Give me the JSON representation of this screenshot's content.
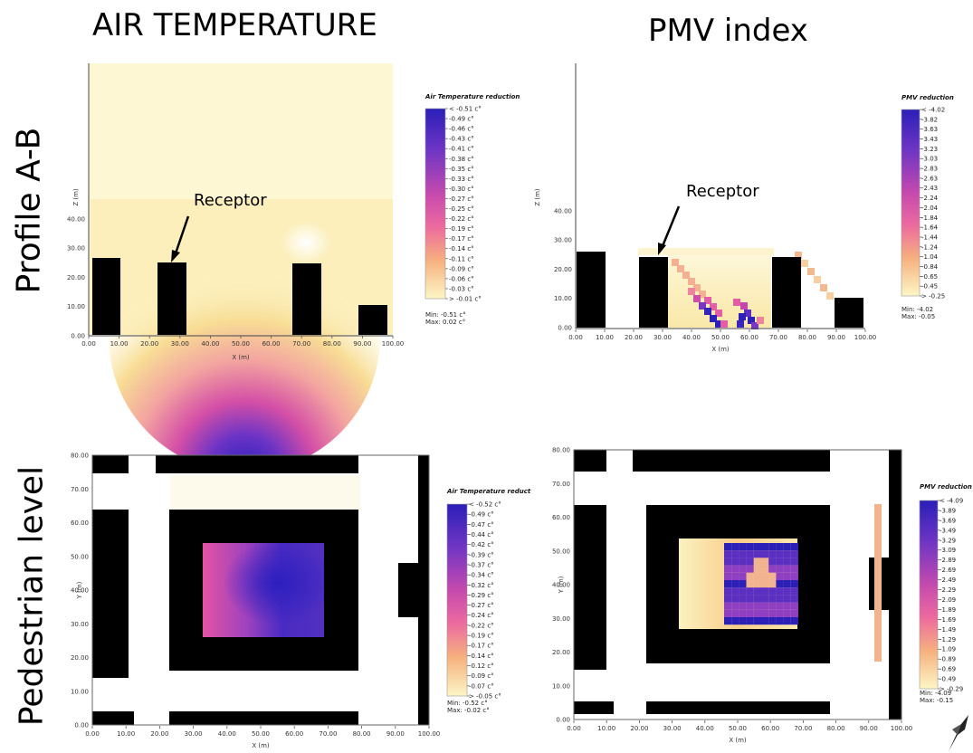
{
  "titles": {
    "col_left": "AIR TEMPERATURE",
    "col_right": "PMV index",
    "row_top": "Profile A-B",
    "row_bottom": "Pedestrian level"
  },
  "colors": {
    "low": "#fdf8d6",
    "mid1": "#f7e08a",
    "mid2": "#f3a9a6",
    "mid3": "#e25ea7",
    "mid4": "#8e3fc2",
    "high": "#2a1fb8",
    "building": "#000000"
  },
  "chart_data": [
    {
      "type": "heatmap",
      "name": "air-temp-profile",
      "xlabel": "X (m)",
      "ylabel": "Z (m)",
      "xlim": [
        0,
        100
      ],
      "ylim": [
        0,
        80
      ],
      "x_ticks": [
        "0.00",
        "10.00",
        "20.00",
        "30.00",
        "40.00",
        "50.00",
        "60.00",
        "70.00",
        "80.00",
        "90.00",
        "100.00"
      ],
      "y_ticks": [
        "0.00",
        "10.00",
        "20.00",
        "30.00",
        "40.00"
      ],
      "annotation": "Receptor",
      "legend_title": "Air Temperature reduction",
      "legend_labels": [
        "< -0.51 c°",
        "-0.49 c°",
        "-0.46 c°",
        "-0.43 c°",
        "-0.41 c°",
        "-0.38 c°",
        "-0.35 c°",
        "-0.33 c°",
        "-0.30 c°",
        "-0.27 c°",
        "-0.25 c°",
        "-0.22 c°",
        "-0.19 c°",
        "-0.17 c°",
        "-0.14 c°",
        "-0.11 c°",
        "-0.09 c°",
        "-0.06 c°",
        "-0.03 c°",
        "> -0.01 c°"
      ],
      "min_label": "Min: -0.51 c°",
      "max_label": "Max: 0.02 c°"
    },
    {
      "type": "heatmap",
      "name": "pmv-profile",
      "xlabel": "X (m)",
      "ylabel": "Z (m)",
      "xlim": [
        0,
        100
      ],
      "ylim": [
        0,
        80
      ],
      "x_ticks": [
        "0.00",
        "10.00",
        "20.00",
        "30.00",
        "40.00",
        "50.00",
        "60.00",
        "70.00",
        "80.00",
        "90.00",
        "100.00"
      ],
      "y_ticks": [
        "0.00",
        "10.00",
        "20.00",
        "30.00",
        "40.00"
      ],
      "annotation": "Receptor",
      "legend_title": "PMV reduction",
      "legend_labels": [
        "< -4.02",
        "-3.82",
        "-3.63",
        "-3.43",
        "-3.23",
        "-3.03",
        "-2.83",
        "-2.63",
        "-2.43",
        "-2.24",
        "-2.04",
        "-1.84",
        "-1.64",
        "-1.44",
        "-1.24",
        "-1.04",
        "-0.84",
        "-0.65",
        "-0.45",
        "> -0.25"
      ],
      "min_label": "Min: -4.02",
      "max_label": "Max: -0.05"
    },
    {
      "type": "heatmap",
      "name": "air-temp-pedestrian",
      "xlabel": "X (m)",
      "ylabel": "Y (m)",
      "xlim": [
        0,
        100
      ],
      "ylim": [
        0,
        80
      ],
      "x_ticks": [
        "0.00",
        "10.00",
        "20.00",
        "30.00",
        "40.00",
        "50.00",
        "60.00",
        "70.00",
        "80.00",
        "90.00",
        "100.00"
      ],
      "y_ticks": [
        "0.00",
        "10.00",
        "20.00",
        "30.00",
        "40.00",
        "50.00",
        "60.00",
        "70.00",
        "80.00"
      ],
      "legend_title": "Air Temperature reduct",
      "legend_labels": [
        "< -0.52 c°",
        "-0.49 c°",
        "-0.47 c°",
        "-0.44 c°",
        "-0.42 c°",
        "-0.39 c°",
        "-0.37 c°",
        "-0.34 c°",
        "-0.32 c°",
        "-0.29 c°",
        "-0.27 c°",
        "-0.24 c°",
        "-0.22 c°",
        "-0.19 c°",
        "-0.17 c°",
        "-0.14 c°",
        "-0.12 c°",
        "-0.09 c°",
        "-0.07 c°",
        "> -0.05 c°"
      ],
      "min_label": "Min: -0.52 c°",
      "max_label": "Max: -0.02 c°"
    },
    {
      "type": "heatmap",
      "name": "pmv-pedestrian",
      "xlabel": "X (m)",
      "ylabel": "Y (m)",
      "xlim": [
        0,
        100
      ],
      "ylim": [
        0,
        80
      ],
      "x_ticks": [
        "0.00",
        "10.00",
        "20.00",
        "30.00",
        "40.00",
        "50.00",
        "60.00",
        "70.00",
        "80.00",
        "90.00",
        "100.00"
      ],
      "y_ticks": [
        "0.00",
        "10.00",
        "20.00",
        "30.00",
        "40.00",
        "50.00",
        "60.00",
        "70.00",
        "80.00"
      ],
      "legend_title": "PMV reduction",
      "legend_labels": [
        "< -4.09",
        "-3.89",
        "-3.69",
        "-3.49",
        "-3.29",
        "-3.09",
        "-2.89",
        "-2.69",
        "-2.49",
        "-2.29",
        "-2.09",
        "-1.89",
        "-1.69",
        "-1.49",
        "-1.29",
        "-1.09",
        "-0.89",
        "-0.69",
        "-0.49",
        "> -0.29"
      ],
      "min_label": "Min: -4.09",
      "max_label": "Max: -0.15"
    }
  ]
}
